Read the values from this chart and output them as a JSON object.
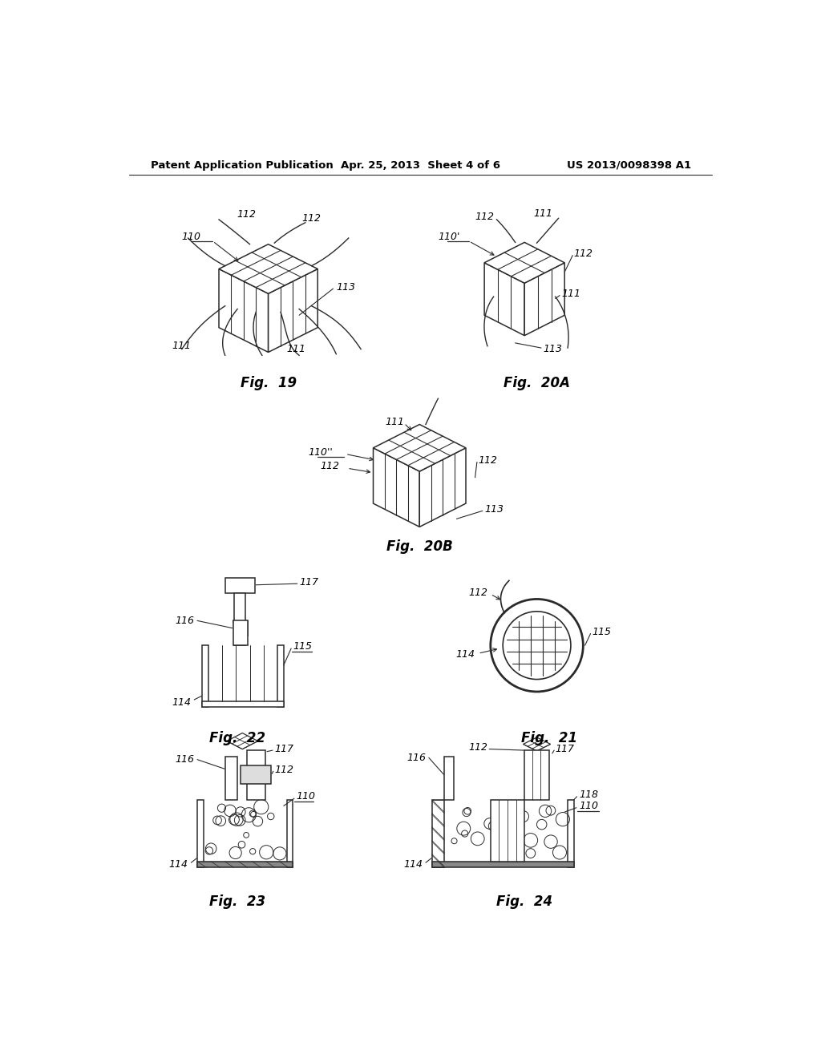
{
  "bg_color": "#ffffff",
  "text_color": "#000000",
  "line_color": "#2a2a2a",
  "header": {
    "left": "Patent Application Publication",
    "center": "Apr. 25, 2013  Sheet 4 of 6",
    "right": "US 2013/0098398 A1"
  }
}
